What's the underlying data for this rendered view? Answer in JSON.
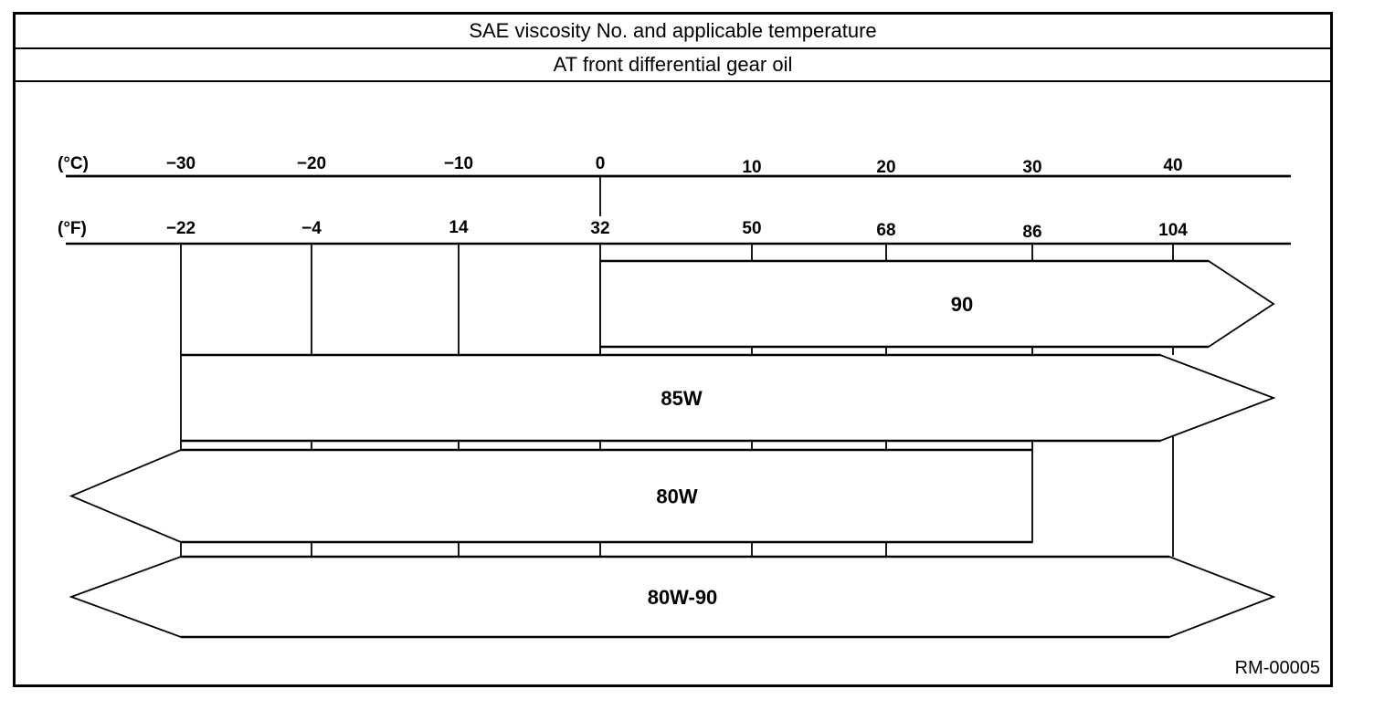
{
  "header": {
    "title": "SAE viscosity No. and applicable temperature",
    "subtitle": "AT front differential gear oil"
  },
  "footer": {
    "reference": "RM-00005"
  },
  "chart_data": {
    "type": "range-bars",
    "title": "SAE viscosity No. and applicable temperature",
    "subtitle": "AT front differential gear oil",
    "axes": {
      "celsius": {
        "unit_label": "(°C)",
        "tick_values": [
          -30,
          -20,
          -10,
          0,
          10,
          20,
          30,
          40
        ],
        "tick_labels": [
          "−30",
          "−20",
          "−10",
          "0",
          "10",
          "20",
          "30",
          "40"
        ]
      },
      "fahrenheit": {
        "unit_label": "(°F)",
        "tick_values": [
          -22,
          -4,
          14,
          32,
          50,
          68,
          86,
          104
        ],
        "tick_labels": [
          "−22",
          "−4",
          "14",
          "32",
          "50",
          "68",
          "86",
          "104"
        ]
      }
    },
    "bars": [
      {
        "label": "90",
        "min_c": 0,
        "max_c": null,
        "arrow_left": false,
        "arrow_right": true
      },
      {
        "label": "85W",
        "min_c": -30,
        "max_c": null,
        "arrow_left": false,
        "arrow_right": true
      },
      {
        "label": "80W",
        "min_c": null,
        "max_c": 30,
        "arrow_left": true,
        "arrow_right": false
      },
      {
        "label": "80W-90",
        "min_c": null,
        "max_c": null,
        "arrow_left": true,
        "arrow_right": true
      }
    ],
    "colors": {
      "line": "#000000",
      "background": "#ffffff"
    }
  }
}
